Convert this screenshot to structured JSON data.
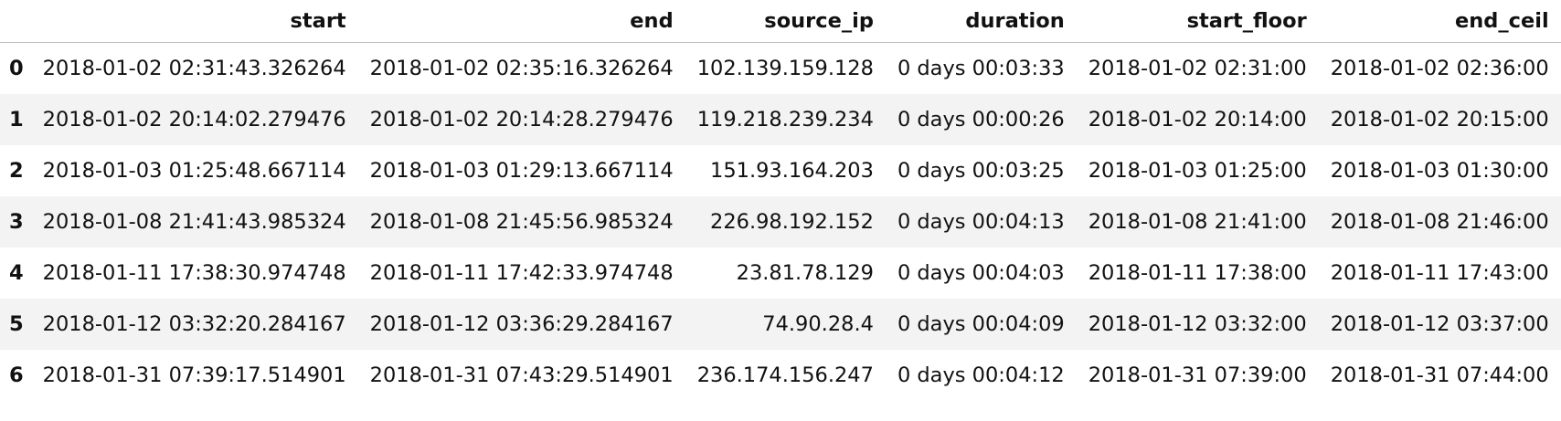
{
  "table": {
    "index_header": "",
    "columns": [
      "start",
      "end",
      "source_ip",
      "duration",
      "start_floor",
      "end_ceil"
    ],
    "rows": [
      {
        "index": "0",
        "cells": [
          "2018-01-02 02:31:43.326264",
          "2018-01-02 02:35:16.326264",
          "102.139.159.128",
          "0 days 00:03:33",
          "2018-01-02 02:31:00",
          "2018-01-02 02:36:00"
        ]
      },
      {
        "index": "1",
        "cells": [
          "2018-01-02 20:14:02.279476",
          "2018-01-02 20:14:28.279476",
          "119.218.239.234",
          "0 days 00:00:26",
          "2018-01-02 20:14:00",
          "2018-01-02 20:15:00"
        ]
      },
      {
        "index": "2",
        "cells": [
          "2018-01-03 01:25:48.667114",
          "2018-01-03 01:29:13.667114",
          "151.93.164.203",
          "0 days 00:03:25",
          "2018-01-03 01:25:00",
          "2018-01-03 01:30:00"
        ]
      },
      {
        "index": "3",
        "cells": [
          "2018-01-08 21:41:43.985324",
          "2018-01-08 21:45:56.985324",
          "226.98.192.152",
          "0 days 00:04:13",
          "2018-01-08 21:41:00",
          "2018-01-08 21:46:00"
        ]
      },
      {
        "index": "4",
        "cells": [
          "2018-01-11 17:38:30.974748",
          "2018-01-11 17:42:33.974748",
          "23.81.78.129",
          "0 days 00:04:03",
          "2018-01-11 17:38:00",
          "2018-01-11 17:43:00"
        ]
      },
      {
        "index": "5",
        "cells": [
          "2018-01-12 03:32:20.284167",
          "2018-01-12 03:36:29.284167",
          "74.90.28.4",
          "0 days 00:04:09",
          "2018-01-12 03:32:00",
          "2018-01-12 03:37:00"
        ]
      },
      {
        "index": "6",
        "cells": [
          "2018-01-31 07:39:17.514901",
          "2018-01-31 07:43:29.514901",
          "236.174.156.247",
          "0 days 00:04:12",
          "2018-01-31 07:39:00",
          "2018-01-31 07:44:00"
        ]
      }
    ]
  }
}
